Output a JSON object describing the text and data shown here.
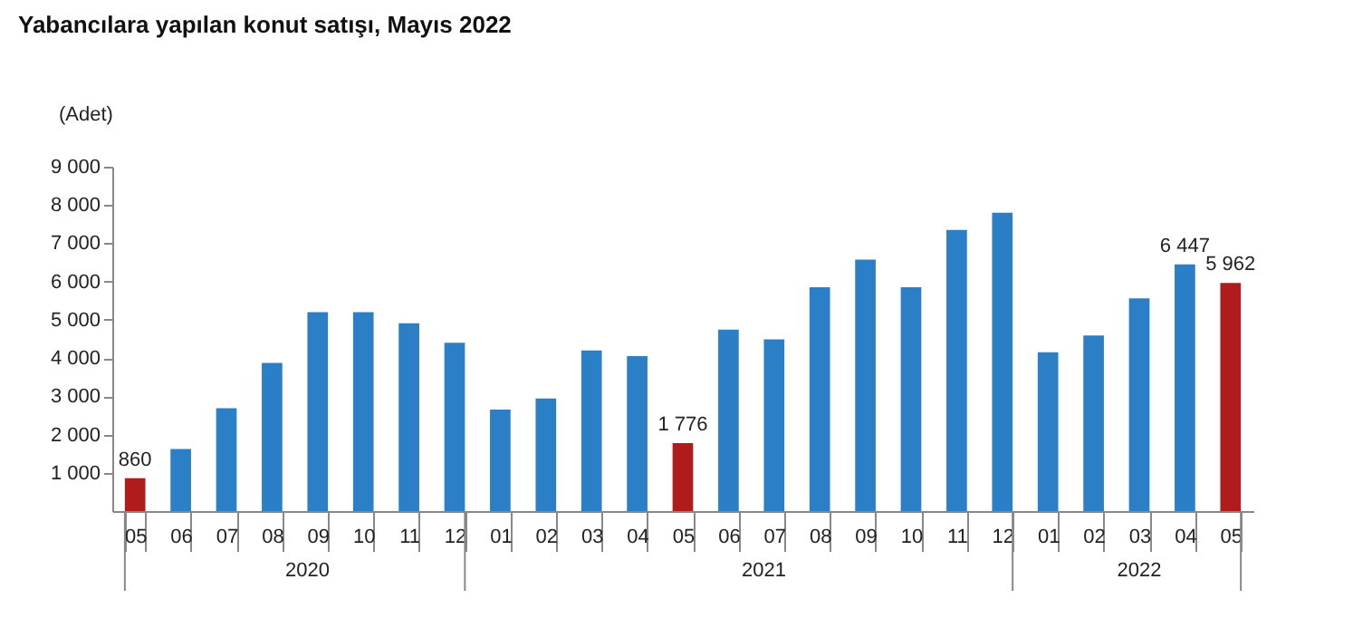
{
  "chart_data": {
    "type": "bar",
    "title": "Yabancılara yapılan konut satışı, Mayıs 2022",
    "ylabel": "(Adet)",
    "categories": [
      "05",
      "06",
      "07",
      "08",
      "09",
      "10",
      "11",
      "12",
      "01",
      "02",
      "03",
      "04",
      "05",
      "06",
      "07",
      "08",
      "09",
      "10",
      "11",
      "12",
      "01",
      "02",
      "03",
      "04",
      "05"
    ],
    "values": [
      860,
      1620,
      2690,
      3870,
      5200,
      5200,
      4910,
      4400,
      2650,
      2940,
      4200,
      4050,
      1776,
      4740,
      4490,
      5850,
      6570,
      5850,
      7350,
      7800,
      4150,
      4590,
      5560,
      6447,
      5962
    ],
    "colors": [
      "#b01c1c",
      "#2a7fc6",
      "#2a7fc6",
      "#2a7fc6",
      "#2a7fc6",
      "#2a7fc6",
      "#2a7fc6",
      "#2a7fc6",
      "#2a7fc6",
      "#2a7fc6",
      "#2a7fc6",
      "#2a7fc6",
      "#b01c1c",
      "#2a7fc6",
      "#2a7fc6",
      "#2a7fc6",
      "#2a7fc6",
      "#2a7fc6",
      "#2a7fc6",
      "#2a7fc6",
      "#2a7fc6",
      "#2a7fc6",
      "#2a7fc6",
      "#2a7fc6",
      "#b01c1c"
    ],
    "value_labels": [
      "860",
      null,
      null,
      null,
      null,
      null,
      null,
      null,
      null,
      null,
      null,
      null,
      "1 776",
      null,
      null,
      null,
      null,
      null,
      null,
      null,
      null,
      null,
      null,
      "6 447",
      "5 962"
    ],
    "annotations": [
      "2020",
      "2021",
      "2022"
    ],
    "ylim": [
      0,
      9000
    ],
    "yticks": [
      {
        "value": 1000,
        "label": "1 000"
      },
      {
        "value": 2000,
        "label": "2 000"
      },
      {
        "value": 3000,
        "label": "3 000"
      },
      {
        "value": 4000,
        "label": "4 000"
      },
      {
        "value": 5000,
        "label": "5 000"
      },
      {
        "value": 6000,
        "label": "6 000"
      },
      {
        "value": 7000,
        "label": "7 000"
      },
      {
        "value": 8000,
        "label": "8 000"
      },
      {
        "value": 9000,
        "label": "9 000"
      }
    ],
    "grid": false
  }
}
